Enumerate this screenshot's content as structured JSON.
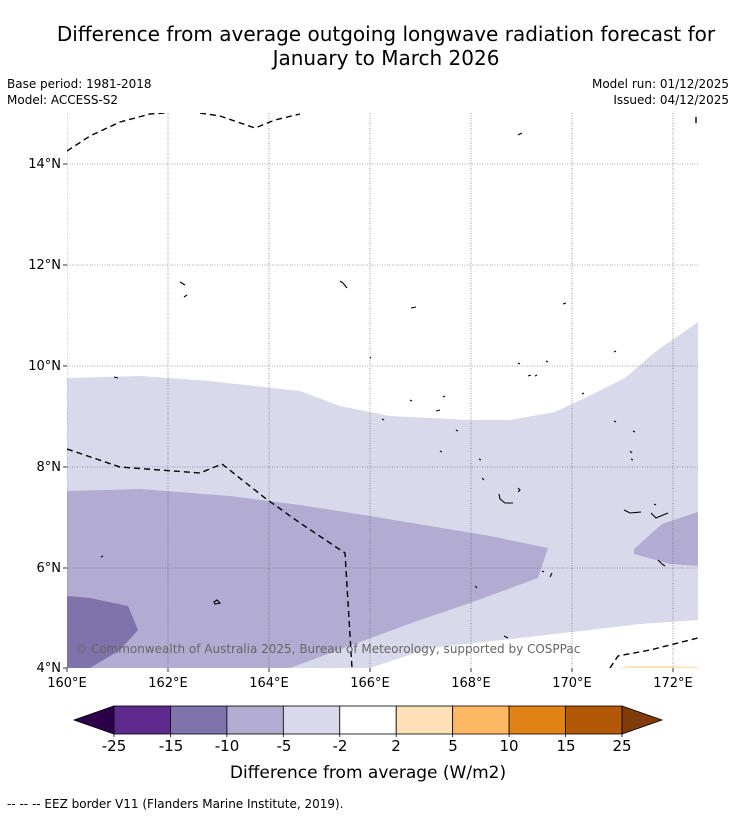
{
  "title_line1": "Difference from average outgoing longwave radiation forecast for",
  "title_line2": "January to March 2026",
  "base_period": "Base period: 1981-2018",
  "model": "Model: ACCESS-S2",
  "model_run": "Model run: 01/12/2025",
  "issued": "Issued: 04/12/2025",
  "lat_labels": [
    "14°N",
    "12°N",
    "10°N",
    "8°N",
    "6°N",
    "4°N"
  ],
  "lon_labels": [
    "160°E",
    "162°E",
    "164°E",
    "166°E",
    "168°E",
    "170°E",
    "172°E"
  ],
  "copyright": "© Commonwealth of Australia 2025, Bureau of Meteorology, supported by COSPPac",
  "colorbar": {
    "ticks": [
      "-25",
      "-15",
      "-10",
      "-5",
      "-2",
      "2",
      "5",
      "10",
      "15",
      "25"
    ],
    "title": "Difference from average (W/m2)",
    "colors": [
      "#2d004b",
      "#5e2a8c",
      "#8073ac",
      "#b2abd2",
      "#d8daeb",
      "#ffffff",
      "#fee0b6",
      "#fdb863",
      "#e08214",
      "#b35806",
      "#7f3b08"
    ]
  },
  "footnote": "--  --  -- EEZ border V11 (Flanders Marine Institute, 2019)."
}
